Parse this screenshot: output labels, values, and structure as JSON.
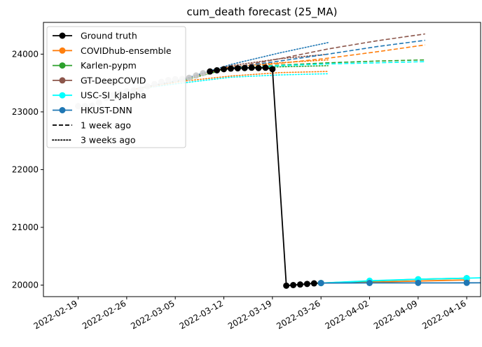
{
  "chart_data": {
    "type": "line",
    "title": "cum_death forecast (25_MA)",
    "xlabel": "",
    "ylabel": "",
    "x_type": "date",
    "xlim": [
      "2022-02-14",
      "2022-04-18"
    ],
    "ylim": [
      19800,
      24550
    ],
    "x_ticks": [
      "2022-02-19",
      "2022-02-26",
      "2022-03-05",
      "2022-03-12",
      "2022-03-19",
      "2022-03-26",
      "2022-04-02",
      "2022-04-09",
      "2022-04-16"
    ],
    "y_ticks": [
      20000,
      21000,
      22000,
      23000,
      24000
    ],
    "legend_position": "top-left",
    "legend": [
      {
        "label": "Ground truth",
        "color": "#000000",
        "style": "solid-marker"
      },
      {
        "label": "COVIDhub-ensemble",
        "color": "#ff7f0e",
        "style": "solid-marker"
      },
      {
        "label": "Karlen-pypm",
        "color": "#2ca02c",
        "style": "solid-marker"
      },
      {
        "label": "GT-DeepCOVID",
        "color": "#8c564b",
        "style": "solid-marker"
      },
      {
        "label": "USC-SI_kJalpha",
        "color": "#00ffff",
        "style": "solid-marker"
      },
      {
        "label": "HKUST-DNN",
        "color": "#1f77b4",
        "style": "solid-marker"
      },
      {
        "label": "1 week ago",
        "color": "#000000",
        "style": "dashed"
      },
      {
        "label": "3 weeks ago",
        "color": "#000000",
        "style": "dotted"
      }
    ],
    "ground_truth_history": {
      "color": "#c8c8c8",
      "points": [
        [
          "2022-02-19",
          23100
        ],
        [
          "2022-02-20",
          23100
        ],
        [
          "2022-02-21",
          23110
        ],
        [
          "2022-02-22",
          23160
        ],
        [
          "2022-02-23",
          23240
        ],
        [
          "2022-02-24",
          23290
        ],
        [
          "2022-02-25",
          23330
        ],
        [
          "2022-02-26",
          23360
        ],
        [
          "2022-02-27",
          23370
        ],
        [
          "2022-02-28",
          23390
        ],
        [
          "2022-03-01",
          23440
        ],
        [
          "2022-03-02",
          23480
        ],
        [
          "2022-03-03",
          23520
        ],
        [
          "2022-03-04",
          23550
        ],
        [
          "2022-03-05",
          23565
        ],
        [
          "2022-03-06",
          23570
        ],
        [
          "2022-03-07",
          23590
        ],
        [
          "2022-03-08",
          23630
        ],
        [
          "2022-03-09",
          23670
        ]
      ]
    },
    "ground_truth": {
      "color": "#000000",
      "points": [
        [
          "2022-03-10",
          23700
        ],
        [
          "2022-03-11",
          23720
        ],
        [
          "2022-03-12",
          23740
        ],
        [
          "2022-03-13",
          23750
        ],
        [
          "2022-03-14",
          23755
        ],
        [
          "2022-03-15",
          23760
        ],
        [
          "2022-03-16",
          23765
        ],
        [
          "2022-03-17",
          23760
        ],
        [
          "2022-03-18",
          23765
        ],
        [
          "2022-03-19",
          23740
        ],
        [
          "2022-03-21",
          19990
        ],
        [
          "2022-03-22",
          20000
        ],
        [
          "2022-03-23",
          20010
        ],
        [
          "2022-03-24",
          20020
        ],
        [
          "2022-03-25",
          20030
        ],
        [
          "2022-03-26",
          20035
        ]
      ]
    },
    "forecasts_1_week_ago": [
      {
        "name": "COVIDhub-ensemble",
        "color": "#ff7f0e",
        "points": [
          [
            "2022-03-13",
            23760
          ],
          [
            "2022-03-20",
            23840
          ],
          [
            "2022-03-27",
            23930
          ],
          [
            "2022-04-03",
            24040
          ],
          [
            "2022-04-10",
            24160
          ]
        ]
      },
      {
        "name": "Karlen-pypm",
        "color": "#2ca02c",
        "points": [
          [
            "2022-03-13",
            23760
          ],
          [
            "2022-03-20",
            23810
          ],
          [
            "2022-03-27",
            23850
          ],
          [
            "2022-04-03",
            23880
          ],
          [
            "2022-04-10",
            23900
          ]
        ]
      },
      {
        "name": "GT-DeepCOVID",
        "color": "#8c564b",
        "points": [
          [
            "2022-03-13",
            23760
          ],
          [
            "2022-03-20",
            23920
          ],
          [
            "2022-03-27",
            24090
          ],
          [
            "2022-04-03",
            24230
          ],
          [
            "2022-04-10",
            24350
          ]
        ]
      },
      {
        "name": "USC-SI_kJalpha",
        "color": "#00ffff",
        "points": [
          [
            "2022-03-13",
            23760
          ],
          [
            "2022-03-20",
            23800
          ],
          [
            "2022-03-27",
            23830
          ],
          [
            "2022-04-03",
            23850
          ],
          [
            "2022-04-10",
            23870
          ]
        ]
      },
      {
        "name": "HKUST-DNN",
        "color": "#1f77b4",
        "points": [
          [
            "2022-03-13",
            23760
          ],
          [
            "2022-03-20",
            23880
          ],
          [
            "2022-03-27",
            24000
          ],
          [
            "2022-04-03",
            24130
          ],
          [
            "2022-04-10",
            24240
          ]
        ]
      }
    ],
    "forecasts_3_weeks_ago": [
      {
        "name": "COVIDhub-ensemble",
        "color": "#ff7f0e",
        "points": [
          [
            "2022-02-27",
            23390
          ],
          [
            "2022-03-06",
            23560
          ],
          [
            "2022-03-13",
            23780
          ],
          [
            "2022-03-20",
            23850
          ],
          [
            "2022-03-27",
            23900
          ]
        ]
      },
      {
        "name": "Karlen-pypm",
        "color": "#2ca02c",
        "points": [
          [
            "2022-02-27",
            23390
          ],
          [
            "2022-03-06",
            23540
          ],
          [
            "2022-03-13",
            23760
          ],
          [
            "2022-03-20",
            23780
          ],
          [
            "2022-03-27",
            23800
          ]
        ]
      },
      {
        "name": "GT-DeepCOVID",
        "color": "#8c564b",
        "points": [
          [
            "2022-02-27",
            23390
          ],
          [
            "2022-03-06",
            23560
          ],
          [
            "2022-03-13",
            23800
          ],
          [
            "2022-03-20",
            23920
          ],
          [
            "2022-03-27",
            24000
          ]
        ]
      },
      {
        "name": "USC-SI_kJalpha",
        "color": "#00ffff",
        "points": [
          [
            "2022-02-27",
            23390
          ],
          [
            "2022-03-06",
            23500
          ],
          [
            "2022-03-13",
            23600
          ],
          [
            "2022-03-20",
            23640
          ],
          [
            "2022-03-27",
            23660
          ]
        ]
      },
      {
        "name": "HKUST-DNN",
        "color": "#1f77b4",
        "points": [
          [
            "2022-02-27",
            23390
          ],
          [
            "2022-03-06",
            23560
          ],
          [
            "2022-03-13",
            23820
          ],
          [
            "2022-03-20",
            24020
          ],
          [
            "2022-03-27",
            24200
          ]
        ]
      },
      {
        "name": "COVIDhub-ensemble (lower)",
        "color": "#ff7f0e",
        "points": [
          [
            "2022-02-27",
            23390
          ],
          [
            "2022-03-06",
            23530
          ],
          [
            "2022-03-13",
            23620
          ],
          [
            "2022-03-20",
            23680
          ],
          [
            "2022-03-27",
            23700
          ]
        ]
      }
    ],
    "current_forecasts": [
      {
        "name": "COVIDhub-ensemble",
        "color": "#ff7f0e",
        "points": [
          [
            "2022-03-26",
            20035
          ],
          [
            "2022-04-02",
            20050
          ],
          [
            "2022-04-09",
            20070
          ],
          [
            "2022-04-16",
            20090
          ]
        ]
      },
      {
        "name": "Karlen-pypm",
        "color": "#2ca02c",
        "points": [
          [
            "2022-03-26",
            20035
          ],
          [
            "2022-04-02",
            20070
          ],
          [
            "2022-04-09",
            20100
          ],
          [
            "2022-04-16",
            20120
          ]
        ]
      },
      {
        "name": "USC-SI_kJalpha",
        "color": "#00ffff",
        "points": [
          [
            "2022-03-26",
            20035
          ],
          [
            "2022-04-02",
            20075
          ],
          [
            "2022-04-09",
            20100
          ],
          [
            "2022-04-16",
            20120
          ],
          [
            "2022-04-23",
            20140
          ]
        ]
      },
      {
        "name": "HKUST-DNN",
        "color": "#1f77b4",
        "points": [
          [
            "2022-03-26",
            20035
          ],
          [
            "2022-04-02",
            20037
          ],
          [
            "2022-04-09",
            20038
          ],
          [
            "2022-04-16",
            20039
          ],
          [
            "2022-04-23",
            20040
          ]
        ]
      }
    ]
  }
}
